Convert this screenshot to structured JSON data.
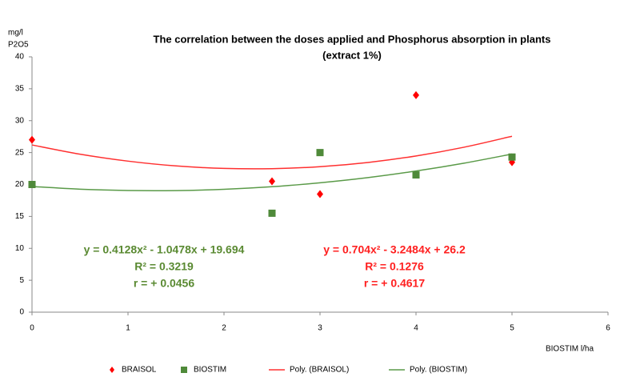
{
  "chart_data": {
    "type": "scatter",
    "title": [
      "The correlation between the doses applied and  Phosphorus  absorption in plants",
      "(extract 1%)"
    ],
    "y_label": [
      "mg/l",
      "P2O5"
    ],
    "x_label": "BIOSTIM l/ha",
    "xlim": [
      0,
      6
    ],
    "xticks": [
      0,
      1,
      2,
      3,
      4,
      5,
      6
    ],
    "ylim": [
      0,
      40
    ],
    "yticks": [
      0,
      5,
      10,
      15,
      20,
      25,
      30,
      35,
      40
    ],
    "grid": false,
    "legend": "bottom",
    "series": [
      {
        "name": "BRAISOL",
        "marker": "diamond",
        "color": "#ff0000",
        "x": [
          0,
          2.5,
          3,
          4,
          5
        ],
        "values": [
          27,
          20.5,
          18.5,
          34,
          23.5
        ]
      },
      {
        "name": "BIOSTIM",
        "marker": "square",
        "color": "#4f8a3a",
        "x": [
          0,
          2.5,
          3,
          4,
          5
        ],
        "values": [
          20,
          15.5,
          25,
          21.5,
          24.3
        ]
      },
      {
        "name": "Poly. (BRAISOL)",
        "marker": "line",
        "color": "#ff3030",
        "x": [
          0,
          0.5,
          1,
          1.5,
          2,
          2.5,
          3,
          3.5,
          4,
          4.5,
          5
        ],
        "values": [
          26.2,
          24.75,
          23.66,
          22.91,
          22.52,
          22.48,
          22.79,
          23.45,
          24.47,
          25.84,
          27.56
        ]
      },
      {
        "name": "Poly. (BIOSTIM)",
        "marker": "line",
        "color": "#5a9a48",
        "x": [
          0,
          0.5,
          1,
          1.5,
          2,
          2.5,
          3,
          3.5,
          4,
          4.5,
          5
        ],
        "values": [
          19.69,
          19.27,
          19.06,
          19.05,
          19.25,
          19.65,
          20.27,
          21.08,
          22.11,
          23.34,
          24.77
        ]
      }
    ],
    "annotations": [
      {
        "color": "#5a8a32",
        "lines": [
          "y = 0.4128x² - 1.0478x + 19.694",
          "R² = 0.3219",
          "r = + 0.0456"
        ]
      },
      {
        "color": "#ff2020",
        "lines": [
          "y = 0.704x² - 3.2484x + 26.2",
          "R² = 0.1276",
          "r = + 0.4617"
        ]
      }
    ]
  }
}
